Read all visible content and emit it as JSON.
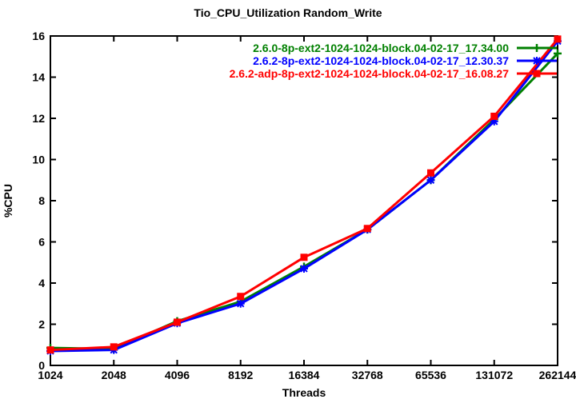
{
  "chart_data": {
    "type": "line",
    "title": "Tio_CPU_Utilization Random_Write",
    "xlabel": "Threads",
    "ylabel": "%CPU",
    "x_scale": "log2-categorical",
    "categories": [
      "1024",
      "2048",
      "4096",
      "8192",
      "16384",
      "32768",
      "65536",
      "131072",
      "262144"
    ],
    "yticks": [
      0,
      2,
      4,
      6,
      8,
      10,
      12,
      14,
      16
    ],
    "ylim": [
      0,
      16
    ],
    "grid": false,
    "legend_position": "top-right-inside",
    "frame_color": "#000000",
    "background_color": "#ffffff",
    "series": [
      {
        "name": "2.6.0-8p-ext2-1024-1024-block.04-02-17_17.34.00",
        "color": "#008000",
        "marker": "plus",
        "values": [
          0.85,
          0.8,
          2.15,
          3.1,
          4.8,
          6.6,
          9.0,
          11.95,
          15.15
        ]
      },
      {
        "name": "2.6.2-8p-ext2-1024-1024-block.04-02-17_12.30.37",
        "color": "#0000ff",
        "marker": "asterisk",
        "values": [
          0.7,
          0.75,
          2.05,
          3.0,
          4.7,
          6.6,
          9.0,
          11.85,
          15.75
        ]
      },
      {
        "name": "2.6.2-adp-8p-ext2-1024-1024-block.04-02-17_16.08.27",
        "color": "#ff0000",
        "marker": "filled-square",
        "values": [
          0.75,
          0.9,
          2.1,
          3.35,
          5.25,
          6.65,
          9.35,
          12.1,
          15.85
        ]
      }
    ]
  }
}
